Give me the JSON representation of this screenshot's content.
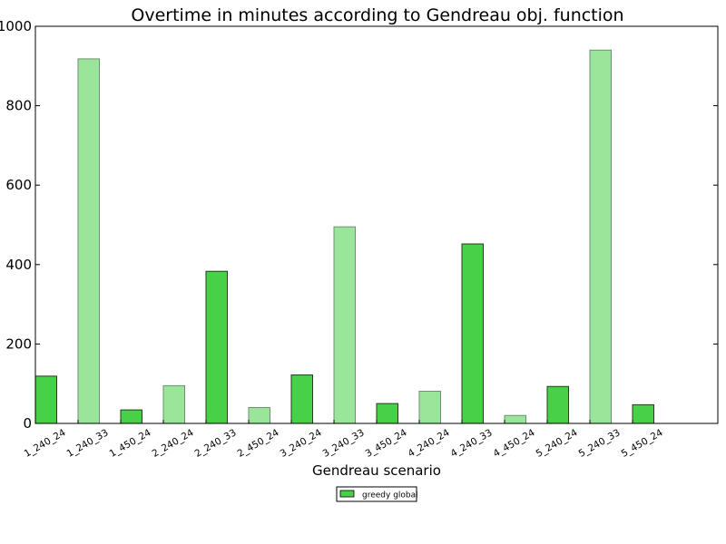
{
  "chart_data": {
    "type": "bar",
    "title": "Overtime in minutes according to Gendreau obj. function",
    "xlabel": "Gendreau scenario",
    "ylabel": "",
    "ylim": [
      0,
      1000
    ],
    "yticks": [
      0,
      200,
      400,
      600,
      800,
      1000
    ],
    "grid": false,
    "legend_position": "bottom-center",
    "categories": [
      "1_240_24",
      "1_240_33",
      "1_450_24",
      "2_240_24",
      "2_240_33",
      "2_450_24",
      "3_240_24",
      "3_240_33",
      "3_450_24",
      "4_240_24",
      "4_240_33",
      "4_450_24",
      "5_240_24",
      "5_240_33",
      "5_450_24"
    ],
    "series": [
      {
        "name": "greedy global",
        "color": "#48d048",
        "values": [
          119,
          918,
          34,
          95,
          383,
          40,
          122,
          495,
          50,
          81,
          452,
          20,
          93,
          940,
          47
        ]
      }
    ],
    "bar_colors": [
      "#48d048",
      "#99e599",
      "#48d048",
      "#99e599",
      "#48d048",
      "#99e599",
      "#48d048",
      "#99e599",
      "#48d048",
      "#99e599",
      "#48d048",
      "#99e599",
      "#48d048",
      "#99e599",
      "#48d048"
    ],
    "edge_colors": [
      "#1f3f1f",
      "#6f8f6f",
      "#1f3f1f",
      "#6f8f6f",
      "#1f3f1f",
      "#6f8f6f",
      "#1f3f1f",
      "#6f8f6f",
      "#1f3f1f",
      "#6f8f6f",
      "#1f3f1f",
      "#6f8f6f",
      "#1f3f1f",
      "#6f8f6f",
      "#1f3f1f"
    ]
  }
}
